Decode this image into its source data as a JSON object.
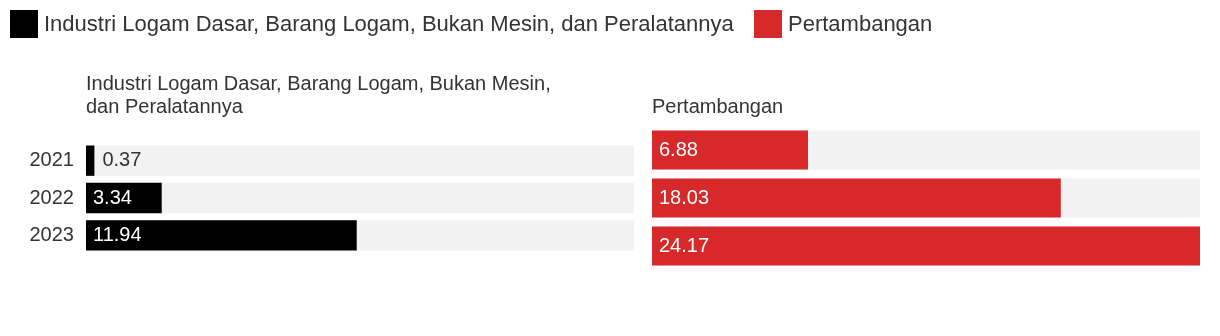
{
  "chart_data": [
    {
      "type": "bar",
      "orientation": "horizontal",
      "title": "Industri Logam Dasar, Barang Logam, Bukan Mesin, dan Peralatannya",
      "categories": [
        "2021",
        "2022",
        "2023"
      ],
      "series": [
        {
          "name": "Industri Logam Dasar, Barang Logam, Bukan Mesin, dan Peralatannya",
          "color": "#000000",
          "values": [
            0.37,
            3.34,
            11.94
          ]
        }
      ],
      "data_labels": true,
      "legend": "top"
    },
    {
      "type": "bar",
      "orientation": "horizontal",
      "title": "Pertambangan",
      "categories": [
        "2021",
        "2022",
        "2023"
      ],
      "series": [
        {
          "name": "Pertambangan",
          "color": "#d7282a",
          "values": [
            6.88,
            18.03,
            24.17
          ]
        }
      ],
      "data_labels": true,
      "legend": "top",
      "tick_labels": false
    }
  ]
}
